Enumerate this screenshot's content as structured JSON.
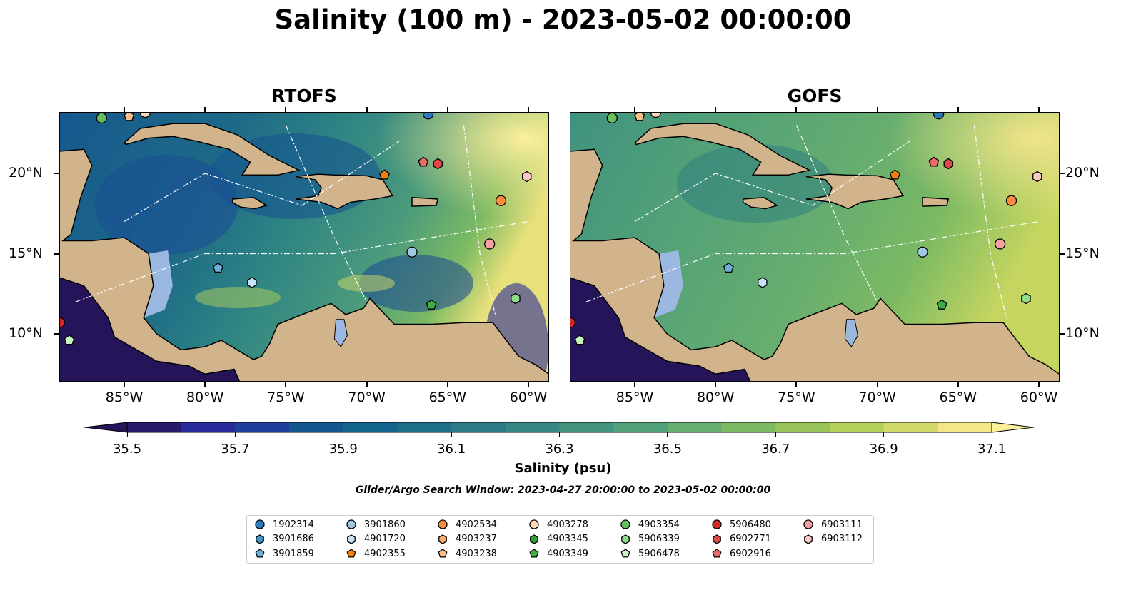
{
  "title": "Salinity (100 m) - 2023-05-02 00:00:00",
  "panels": [
    {
      "title": "RTOFS",
      "model": "rtofs"
    },
    {
      "title": "GOFS",
      "model": "gofs"
    }
  ],
  "lon_ticks": [
    "85°W",
    "80°W",
    "75°W",
    "70°W",
    "65°W",
    "60°W"
  ],
  "lat_ticks": [
    "20°N",
    "15°N",
    "10°N"
  ],
  "colorbar": {
    "label": "Salinity (psu)",
    "ticks": [
      "35.5",
      "35.7",
      "35.9",
      "36.1",
      "36.3",
      "36.5",
      "36.7",
      "36.9",
      "37.1"
    ],
    "min": 35.5,
    "max": 37.1,
    "step": 0.1,
    "colors": [
      "#271a6c",
      "#282a99",
      "#1f3f9a",
      "#15558f",
      "#13648a",
      "#1f7087",
      "#2a7b85",
      "#358883",
      "#42947f",
      "#53a178",
      "#66ad6f",
      "#7cba63",
      "#98c45a",
      "#b4cf5a",
      "#d2da6a",
      "#f5e68a"
    ],
    "under_color": "#25145a",
    "over_color": "#fbef9c"
  },
  "search_window": "Glider/Argo Search Window: 2023-04-27 20:00:00 to 2023-05-02 00:00:00",
  "floats": [
    {
      "id": "1902314",
      "shape": "circle",
      "color": "#2b7bba",
      "lon": -66.2,
      "lat": 23.7
    },
    {
      "id": "3901686",
      "shape": "hexagon",
      "color": "#4292c6",
      "lon": null,
      "lat": null
    },
    {
      "id": "3901859",
      "shape": "pentagon",
      "color": "#6baed6",
      "lon": -79.2,
      "lat": 14.1
    },
    {
      "id": "3901860",
      "shape": "circle",
      "color": "#9ecae1",
      "lon": -67.2,
      "lat": 15.1
    },
    {
      "id": "4901720",
      "shape": "hexagon",
      "color": "#c6e4f5",
      "lon": -77.1,
      "lat": 13.2
    },
    {
      "id": "4902355",
      "shape": "pentagon",
      "color": "#f07f10",
      "lon": -68.9,
      "lat": 19.9
    },
    {
      "id": "4902534",
      "shape": "circle",
      "color": "#fd8d3c",
      "lon": -61.7,
      "lat": 18.3
    },
    {
      "id": "4903237",
      "shape": "hexagon",
      "color": "#fdae6b",
      "lon": null,
      "lat": null
    },
    {
      "id": "4903238",
      "shape": "pentagon",
      "color": "#fdc08a",
      "lon": -84.7,
      "lat": 23.55
    },
    {
      "id": "4903278",
      "shape": "circle",
      "color": "#fdd9b5",
      "lon": -83.7,
      "lat": 23.8
    },
    {
      "id": "4903345",
      "shape": "hexagon",
      "color": "#2ca02c",
      "lon": null,
      "lat": null
    },
    {
      "id": "4903349",
      "shape": "pentagon",
      "color": "#3cae45",
      "lon": -66.0,
      "lat": 11.8
    },
    {
      "id": "4903354",
      "shape": "circle",
      "color": "#66c060",
      "lon": -86.4,
      "lat": 23.45
    },
    {
      "id": "5906339",
      "shape": "hexagon",
      "color": "#90dd8a",
      "lon": -60.8,
      "lat": 12.2
    },
    {
      "id": "5906478",
      "shape": "pentagon",
      "color": "#c7f5c0",
      "lon": -88.4,
      "lat": 9.6
    },
    {
      "id": "5906480",
      "shape": "circle",
      "color": "#d62728",
      "lon": -89.0,
      "lat": 10.7
    },
    {
      "id": "6902771",
      "shape": "hexagon",
      "color": "#e04848",
      "lon": -65.6,
      "lat": 20.6
    },
    {
      "id": "6902916",
      "shape": "pentagon",
      "color": "#ec6a6a",
      "lon": -66.5,
      "lat": 20.7
    },
    {
      "id": "6903111",
      "shape": "circle",
      "color": "#f4a0a0",
      "lon": -62.4,
      "lat": 15.6
    },
    {
      "id": "6903112",
      "shape": "hexagon",
      "color": "#fbc8c8",
      "lon": -60.1,
      "lat": 19.8
    }
  ]
}
